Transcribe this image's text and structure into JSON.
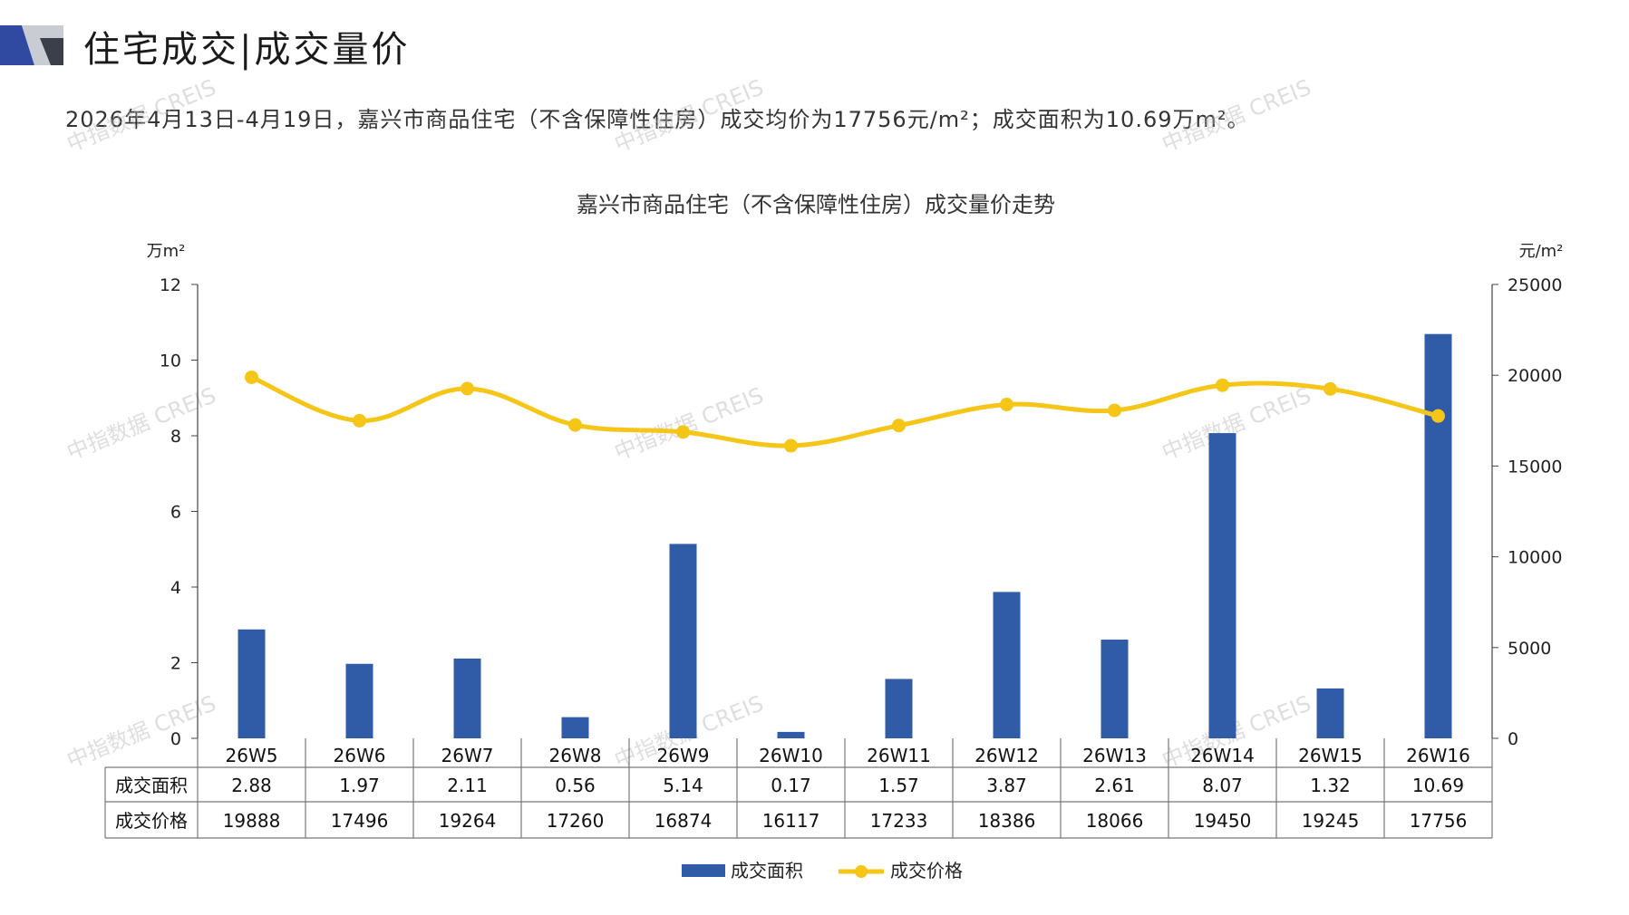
{
  "header": {
    "title": "住宅成交|成交量价",
    "summary": "2026年4月13日-4月19日，嘉兴市商品住宅（不含保障性住房）成交均价为17756元/m²；成交面积为10.69万m²。"
  },
  "watermark": "中指数据 CREIS",
  "colors": {
    "bar": "#2f5ba7",
    "line": "#f5c518",
    "axis": "#444444",
    "brand_dark": "#2f4aa0",
    "brand_gray": "#c9ccd3"
  },
  "chart_data": {
    "type": "bar+line",
    "title": "嘉兴市商品住宅（不含保障性住房）成交量价走势",
    "categories": [
      "26W5",
      "26W6",
      "26W7",
      "26W8",
      "26W9",
      "26W10",
      "26W11",
      "26W12",
      "26W13",
      "26W14",
      "26W15",
      "26W16"
    ],
    "series": [
      {
        "name": "成交面积",
        "type": "bar",
        "axis": "left",
        "values": [
          2.88,
          1.97,
          2.11,
          0.56,
          5.14,
          0.17,
          1.57,
          3.87,
          2.61,
          8.07,
          1.32,
          10.69
        ],
        "labels": [
          "2.88",
          "1.97",
          "2.11",
          "0.56",
          "5.14",
          "0.17",
          "1.57",
          "3.87",
          "2.61",
          "8.07",
          "1.32",
          "10.69"
        ]
      },
      {
        "name": "成交价格",
        "type": "line",
        "axis": "right",
        "values": [
          19888,
          17496,
          19264,
          17260,
          16874,
          16117,
          17233,
          18386,
          18066,
          19450,
          19245,
          17756
        ],
        "labels": [
          "19888",
          "17496",
          "19264",
          "17260",
          "16874",
          "16117",
          "17233",
          "18386",
          "18066",
          "19450",
          "19245",
          "17756"
        ]
      }
    ],
    "y_left": {
      "label": "万m²",
      "min": 0,
      "max": 12,
      "ticks": [
        "0",
        "2",
        "4",
        "6",
        "8",
        "10",
        "12"
      ]
    },
    "y_right": {
      "label": "元/m²",
      "min": 0,
      "max": 25000,
      "ticks": [
        "0",
        "5000",
        "10000",
        "15000",
        "20000",
        "25000"
      ]
    },
    "legend": {
      "position": "bottom",
      "entries": [
        "成交面积",
        "成交价格"
      ]
    },
    "grid": false
  }
}
